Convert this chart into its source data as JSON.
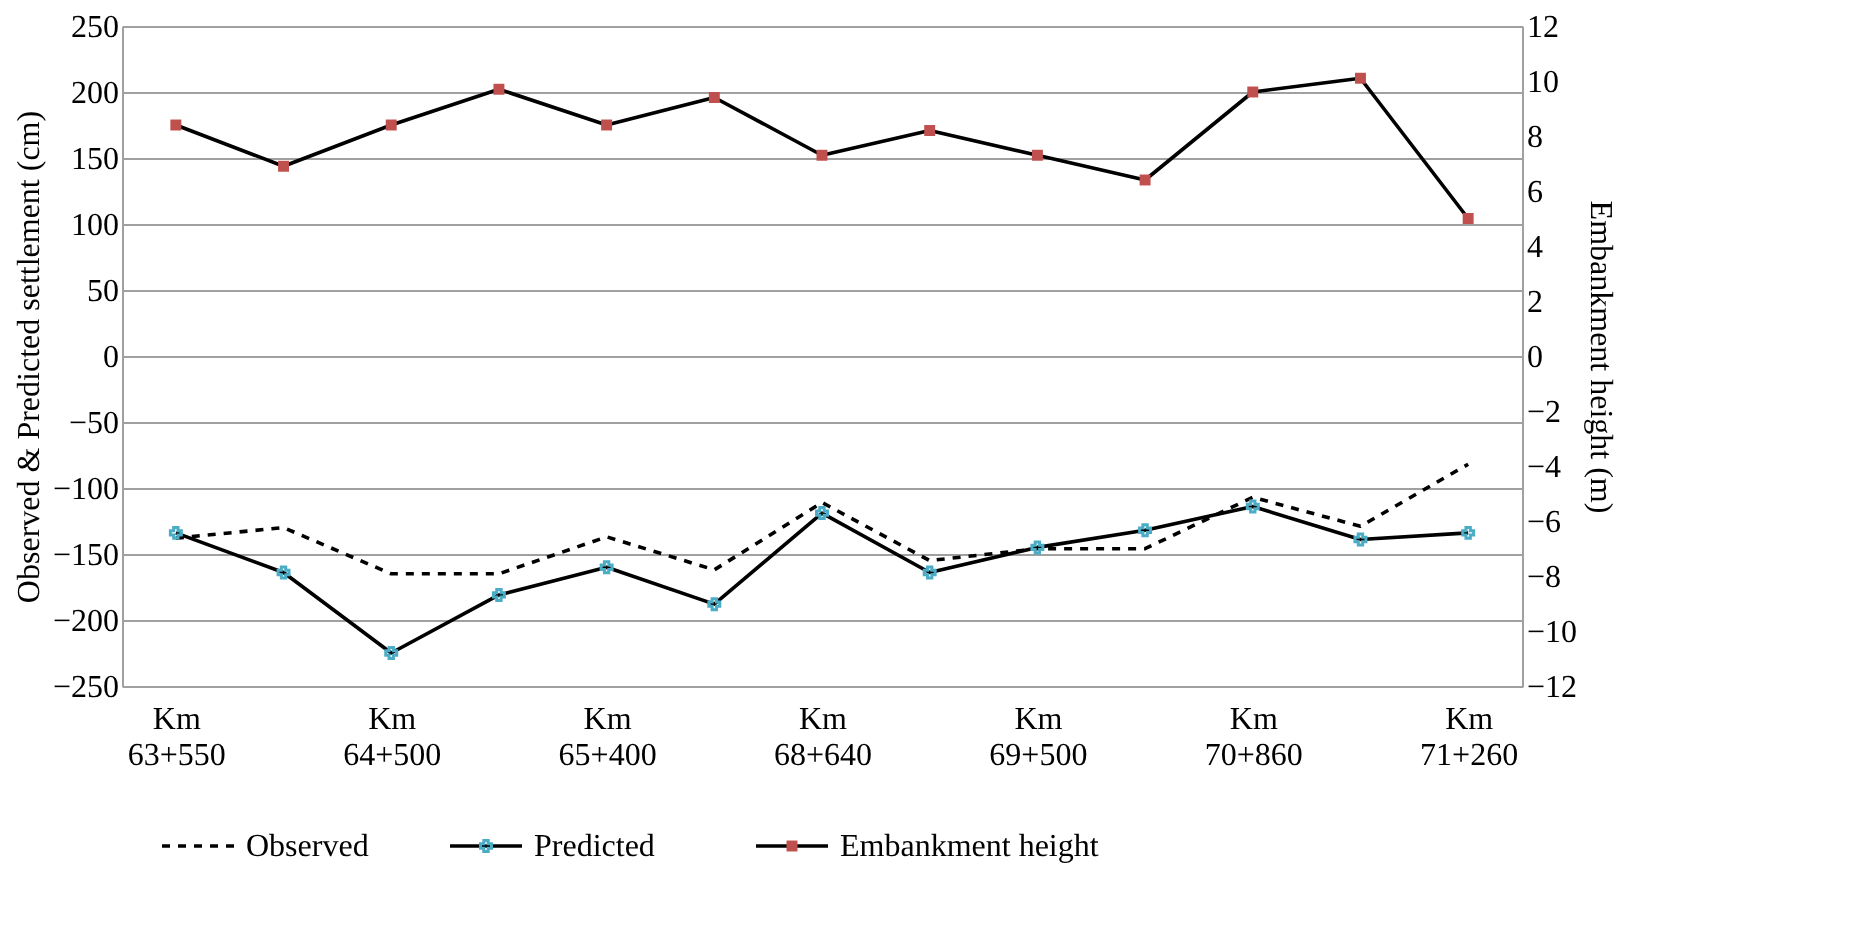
{
  "chart_data": {
    "type": "line",
    "ylabel": "Observed & Predicted settlement (cm)",
    "y2label": "Embankment height (m)",
    "categories": [
      "Km 63+550",
      null,
      "Km 64+500",
      null,
      "Km 65+400",
      null,
      "Km 68+640",
      null,
      "Km 69+500",
      null,
      "Km 70+860",
      null,
      "Km 71+260"
    ],
    "series": [
      {
        "name": "Observed",
        "color": "#000000",
        "line_style": "dashed",
        "marker": "none",
        "values": [
          -138,
          -130,
          -165,
          -165,
          -137,
          -162,
          -111,
          -155,
          -146,
          -146,
          -107,
          -129,
          -82
        ]
      },
      {
        "name": "Predicted",
        "color": "#4bacc6",
        "line_style": "solid",
        "marker": "cross",
        "values": [
          -134,
          -164,
          -225,
          -181,
          -160,
          -188,
          -119,
          -164,
          -145,
          -132,
          -114,
          -139,
          -134
        ]
      },
      {
        "name": "Embankment height",
        "color": "#c0504d",
        "line_style": "solid",
        "marker": "square",
        "axis": "y2",
        "values": [
          8.4,
          6.9,
          8.4,
          9.7,
          8.4,
          9.4,
          7.3,
          8.2,
          7.3,
          6.4,
          9.6,
          10.1,
          5.0
        ]
      }
    ],
    "ylim": [
      -250,
      250
    ],
    "yticks": [
      -250,
      -200,
      -150,
      -100,
      -50,
      0,
      50,
      100,
      150,
      200,
      250
    ],
    "y2lim": [
      -12,
      12
    ],
    "y2ticks": [
      -12,
      -10,
      -8,
      -6,
      -4,
      -2,
      0,
      2,
      4,
      6,
      8,
      10,
      12
    ],
    "grid": "y",
    "legend": "bottom"
  }
}
